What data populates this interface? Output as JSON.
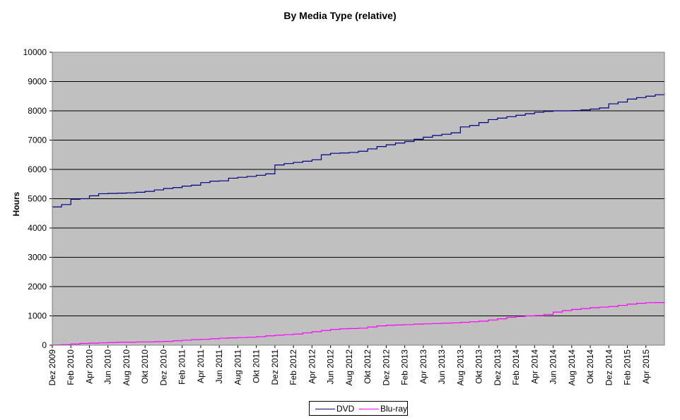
{
  "chart_data": {
    "type": "line",
    "title": "By Media Type (relative)",
    "xlabel": "",
    "ylabel": "Hours",
    "ylim": [
      0,
      10000
    ],
    "yticks": [
      0,
      1000,
      2000,
      3000,
      4000,
      5000,
      6000,
      7000,
      8000,
      9000,
      10000
    ],
    "grid": true,
    "legend_position": "bottom",
    "plot_background": "#c0c0c0",
    "x_tick_labels": [
      "Dez 2009",
      "Feb 2010",
      "Apr 2010",
      "Jun 2010",
      "Aug 2010",
      "Okt 2010",
      "Dez 2010",
      "Feb 2011",
      "Apr 2011",
      "Jun 2011",
      "Aug 2011",
      "Okt 2011",
      "Dez 2011",
      "Feb 2012",
      "Apr 2012",
      "Jun 2012",
      "Aug 2012",
      "Okt 2012",
      "Dez 2012",
      "Feb 2013",
      "Apr 2013",
      "Jun 2013",
      "Aug 2013",
      "Okt 2013",
      "Dez 2013",
      "Feb 2014",
      "Apr 2014",
      "Jun 2014",
      "Aug 2014",
      "Okt 2014",
      "Dez 2014",
      "Feb 2015",
      "Apr 2015"
    ],
    "x_range": [
      "2009-12",
      "2015-06"
    ],
    "x": [
      "2009-12",
      "2010-01",
      "2010-02",
      "2010-03",
      "2010-04",
      "2010-05",
      "2010-06",
      "2010-07",
      "2010-08",
      "2010-09",
      "2010-10",
      "2010-11",
      "2010-12",
      "2011-01",
      "2011-02",
      "2011-03",
      "2011-04",
      "2011-05",
      "2011-06",
      "2011-07",
      "2011-08",
      "2011-09",
      "2011-10",
      "2011-11",
      "2011-12",
      "2012-01",
      "2012-02",
      "2012-03",
      "2012-04",
      "2012-05",
      "2012-06",
      "2012-07",
      "2012-08",
      "2012-09",
      "2012-10",
      "2012-11",
      "2012-12",
      "2013-01",
      "2013-02",
      "2013-03",
      "2013-04",
      "2013-05",
      "2013-06",
      "2013-07",
      "2013-08",
      "2013-09",
      "2013-10",
      "2013-11",
      "2013-12",
      "2014-01",
      "2014-02",
      "2014-03",
      "2014-04",
      "2014-05",
      "2014-06",
      "2014-07",
      "2014-08",
      "2014-09",
      "2014-10",
      "2014-11",
      "2014-12",
      "2015-01",
      "2015-02",
      "2015-03",
      "2015-04",
      "2015-05",
      "2015-06"
    ],
    "series": [
      {
        "name": "DVD",
        "color": "#000080",
        "values": [
          4720,
          4800,
          4980,
          5000,
          5100,
          5170,
          5180,
          5190,
          5200,
          5220,
          5250,
          5300,
          5350,
          5380,
          5430,
          5460,
          5550,
          5600,
          5610,
          5700,
          5730,
          5760,
          5800,
          5850,
          6150,
          6200,
          6240,
          6280,
          6330,
          6500,
          6550,
          6560,
          6580,
          6620,
          6700,
          6780,
          6840,
          6900,
          6950,
          7030,
          7100,
          7160,
          7200,
          7250,
          7450,
          7500,
          7600,
          7700,
          7750,
          7800,
          7850,
          7900,
          7950,
          7980,
          8000,
          8000,
          8010,
          8030,
          8060,
          8100,
          8240,
          8300,
          8400,
          8450,
          8500,
          8550,
          8610
        ]
      },
      {
        "name": "Blu-ray",
        "color": "#ff00ff",
        "values": [
          10,
          20,
          40,
          60,
          70,
          80,
          90,
          100,
          100,
          110,
          110,
          120,
          130,
          150,
          170,
          190,
          200,
          220,
          240,
          250,
          260,
          270,
          290,
          320,
          340,
          360,
          380,
          420,
          460,
          500,
          540,
          560,
          570,
          580,
          620,
          660,
          680,
          690,
          700,
          720,
          730,
          740,
          750,
          760,
          780,
          800,
          820,
          860,
          900,
          950,
          980,
          1000,
          1010,
          1050,
          1130,
          1180,
          1220,
          1250,
          1280,
          1300,
          1320,
          1360,
          1400,
          1430,
          1450,
          1455,
          1460
        ]
      }
    ]
  }
}
